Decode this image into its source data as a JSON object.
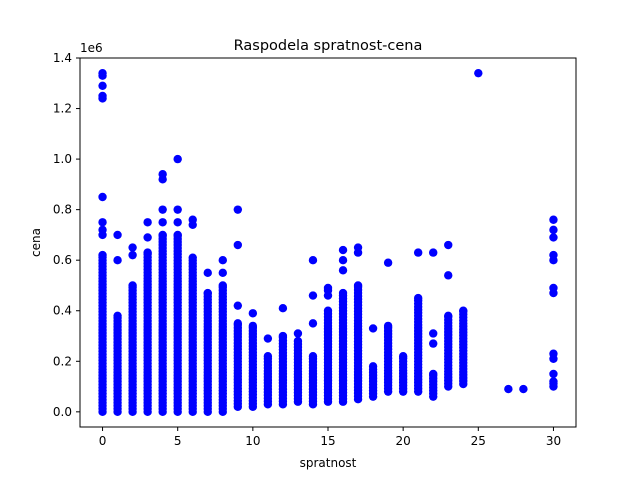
{
  "chart_data": {
    "type": "scatter",
    "title": "Raspodela spratnost-cena",
    "xlabel": "spratnost",
    "ylabel": "cena",
    "y_offset_label": "1e6",
    "xlim": [
      -1.5,
      31.5
    ],
    "ylim": [
      -0.06,
      1.4
    ],
    "x_ticks": [
      0,
      5,
      10,
      15,
      20,
      25,
      30
    ],
    "x_tick_labels": [
      "0",
      "5",
      "10",
      "15",
      "20",
      "25",
      "30"
    ],
    "y_ticks": [
      0.0,
      0.2,
      0.4,
      0.6,
      0.8,
      1.0,
      1.2,
      1.4
    ],
    "y_tick_labels": [
      "0.0",
      "0.2",
      "0.4",
      "0.6",
      "0.8",
      "1.0",
      "1.2",
      "1.4"
    ],
    "grid": false,
    "color": "#0000ff",
    "y_unit_note": "values in millions (x1e6)",
    "columns": [
      {
        "x": 0,
        "min": 0.0,
        "max": 0.62,
        "outliers": [
          0.7,
          0.72,
          0.75,
          0.85,
          1.24,
          1.25,
          1.29,
          1.33,
          1.34
        ]
      },
      {
        "x": 1,
        "min": 0.0,
        "max": 0.38,
        "outliers": [
          0.6,
          0.7
        ]
      },
      {
        "x": 2,
        "min": 0.0,
        "max": 0.5,
        "outliers": [
          0.62,
          0.65
        ]
      },
      {
        "x": 3,
        "min": 0.0,
        "max": 0.63,
        "outliers": [
          0.69,
          0.75
        ]
      },
      {
        "x": 4,
        "min": 0.0,
        "max": 0.7,
        "outliers": [
          0.75,
          0.8,
          0.92,
          0.94
        ]
      },
      {
        "x": 5,
        "min": 0.0,
        "max": 0.7,
        "outliers": [
          0.75,
          0.8,
          1.0
        ]
      },
      {
        "x": 6,
        "min": 0.0,
        "max": 0.61,
        "outliers": [
          0.74,
          0.76
        ]
      },
      {
        "x": 7,
        "min": 0.0,
        "max": 0.47,
        "outliers": [
          0.55
        ]
      },
      {
        "x": 8,
        "min": 0.0,
        "max": 0.5,
        "outliers": [
          0.55,
          0.6
        ]
      },
      {
        "x": 9,
        "min": 0.02,
        "max": 0.35,
        "outliers": [
          0.42,
          0.66,
          0.8
        ]
      },
      {
        "x": 10,
        "min": 0.02,
        "max": 0.34,
        "outliers": [
          0.39
        ]
      },
      {
        "x": 11,
        "min": 0.03,
        "max": 0.22,
        "outliers": [
          0.29
        ]
      },
      {
        "x": 12,
        "min": 0.03,
        "max": 0.3,
        "outliers": [
          0.41
        ]
      },
      {
        "x": 13,
        "min": 0.04,
        "max": 0.28,
        "outliers": [
          0.31
        ]
      },
      {
        "x": 14,
        "min": 0.03,
        "max": 0.22,
        "outliers": [
          0.35,
          0.46,
          0.6
        ]
      },
      {
        "x": 15,
        "min": 0.04,
        "max": 0.4,
        "outliers": [
          0.46,
          0.48,
          0.49
        ]
      },
      {
        "x": 16,
        "min": 0.04,
        "max": 0.47,
        "outliers": [
          0.56,
          0.6,
          0.64
        ]
      },
      {
        "x": 17,
        "min": 0.05,
        "max": 0.5,
        "outliers": [
          0.63,
          0.65
        ]
      },
      {
        "x": 18,
        "min": 0.06,
        "max": 0.18,
        "outliers": [
          0.33
        ]
      },
      {
        "x": 19,
        "min": 0.08,
        "max": 0.34,
        "outliers": [
          0.59
        ]
      },
      {
        "x": 20,
        "min": 0.08,
        "max": 0.22,
        "outliers": []
      },
      {
        "x": 21,
        "min": 0.08,
        "max": 0.45,
        "outliers": [
          0.63
        ]
      },
      {
        "x": 22,
        "min": 0.06,
        "max": 0.15,
        "outliers": [
          0.27,
          0.31,
          0.63
        ]
      },
      {
        "x": 23,
        "min": 0.1,
        "max": 0.38,
        "outliers": [
          0.54,
          0.66
        ]
      },
      {
        "x": 24,
        "min": 0.11,
        "max": 0.4,
        "outliers": []
      },
      {
        "x": 25,
        "min": 1.34,
        "max": 1.34,
        "outliers": []
      },
      {
        "x": 27,
        "min": 0.09,
        "max": 0.09,
        "outliers": []
      },
      {
        "x": 28,
        "min": 0.09,
        "max": 0.09,
        "outliers": []
      },
      {
        "x": 30,
        "min": 0.1,
        "max": 0.12,
        "outliers": [
          0.15,
          0.21,
          0.23,
          0.47,
          0.49,
          0.6,
          0.62,
          0.69,
          0.72,
          0.76
        ]
      }
    ]
  }
}
